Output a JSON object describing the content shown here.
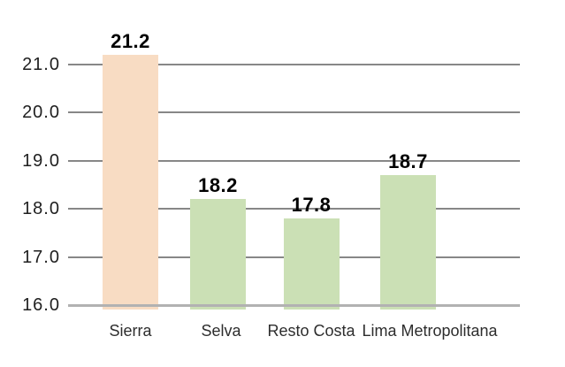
{
  "chart_data": {
    "type": "bar",
    "categories": [
      "Sierra",
      "Selva",
      "Resto Costa",
      "Lima Metropolitana"
    ],
    "values": [
      21.2,
      18.2,
      17.8,
      18.7
    ],
    "value_labels": [
      "21.2",
      "18.2",
      "17.8",
      "18.7"
    ],
    "y_tick_labels": [
      "21.0",
      "20.0",
      "19.0",
      "18.0",
      "17.0",
      "16.0"
    ],
    "y_tick_values": [
      21.0,
      20.0,
      19.0,
      18.0,
      17.0,
      16.0
    ],
    "ylim": [
      16.0,
      21.5
    ],
    "grid": "on",
    "legend": "none",
    "bar_colors": [
      "#f8dcc3",
      "#cbe0b5",
      "#cbe0b5",
      "#cbe0b5"
    ],
    "highlight_color": "#f8dcc3",
    "normal_color": "#cbe0b5",
    "gridline_color": "#878787",
    "baseline_color": "#b2b2b2",
    "tick_text_color": "#1f1f1f",
    "category_text_color": "#2d2d2d",
    "value_label_color": "#000000"
  }
}
